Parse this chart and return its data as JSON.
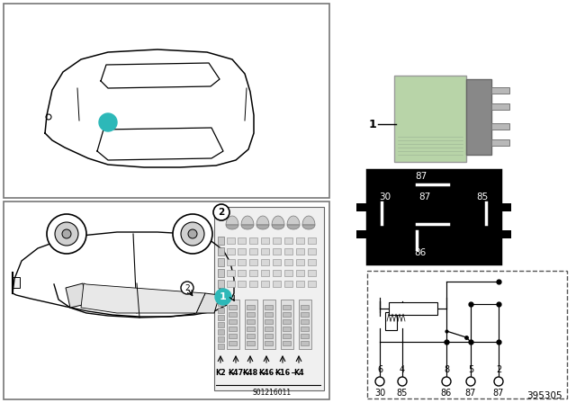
{
  "bg_color": "#ffffff",
  "teal_color": "#2db8b8",
  "part_number": "395305",
  "relay_green": "#b8d4a8",
  "pin_diagram_labels": [
    "87",
    "30",
    "87",
    "85",
    "86"
  ],
  "circuit_pins_top": [
    "6",
    "4",
    "8",
    "5",
    "2"
  ],
  "circuit_pins_bottom": [
    "30",
    "85",
    "86",
    "87",
    "87"
  ],
  "fuse_box_labels": [
    "K2",
    "K47",
    "K48",
    "K46",
    "K16",
    "K4"
  ],
  "diagram_label": "S01216011",
  "gray_dark": "#444444",
  "gray_mid": "#888888",
  "gray_light": "#cccccc",
  "gray_fuse": "#b0b0b0"
}
